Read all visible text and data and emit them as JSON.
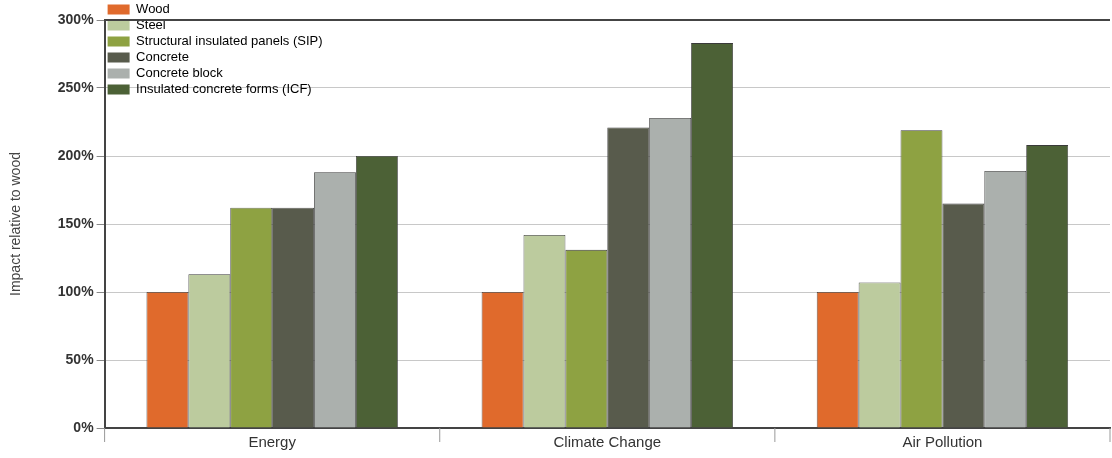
{
  "chart_data": {
    "type": "bar",
    "ylabel": "Impact relative to wood",
    "categories": [
      "Energy",
      "Climate Change",
      "Air Pollution"
    ],
    "series": [
      {
        "name": "Wood",
        "color": "#e06a2c",
        "values": [
          100,
          100,
          100
        ]
      },
      {
        "name": "Steel",
        "color": "#bccb9e",
        "values": [
          113,
          142,
          107
        ]
      },
      {
        "name": "Structural insulated panels (SIP)",
        "color": "#8ea242",
        "values": [
          162,
          131,
          219
        ]
      },
      {
        "name": "Concrete",
        "color": "#585b4c",
        "values": [
          162,
          221,
          165
        ]
      },
      {
        "name": "Concrete block",
        "color": "#abb0ad",
        "values": [
          188,
          228,
          189
        ]
      },
      {
        "name": "Insulated concrete forms (ICF)",
        "color": "#4c6136",
        "values": [
          200,
          283,
          208
        ]
      }
    ],
    "ylim": [
      0,
      300
    ],
    "yticks": [
      {
        "value": 0,
        "label": "0%"
      },
      {
        "value": 50,
        "label": "50%"
      },
      {
        "value": 100,
        "label": "100%"
      },
      {
        "value": 150,
        "label": "150%"
      },
      {
        "value": 200,
        "label": "200%"
      },
      {
        "value": 250,
        "label": "250%"
      },
      {
        "value": 300,
        "label": "300%"
      }
    ],
    "grid": "y",
    "legend": "top left"
  }
}
